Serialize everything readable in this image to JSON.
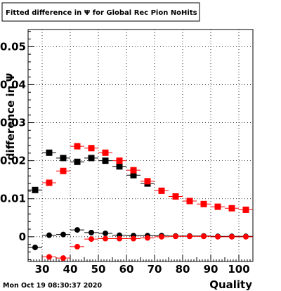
{
  "footer": {
    "timestamp": "Mon Oct 19 08:30:37 2020"
  },
  "chart_data": {
    "type": "scatter",
    "title": "Fitted difference in  Ψ  for Global Rec Pion NoHits",
    "xlabel": "Quality",
    "ylabel": "difference in Ψ",
    "xlim": [
      25,
      105
    ],
    "ylim": [
      -0.0065,
      0.0545
    ],
    "x_ticks": [
      30,
      40,
      50,
      60,
      70,
      80,
      90,
      100
    ],
    "x_tick_labels": [
      "30",
      "40",
      "50",
      "60",
      "70",
      "80",
      "90",
      "100"
    ],
    "y_ticks": [
      0,
      0.01,
      0.02,
      0.03,
      0.04,
      0.05
    ],
    "y_tick_labels": [
      "0",
      "0.01",
      "0.02",
      "0.03",
      "0.04",
      "0.05"
    ],
    "grid": true,
    "legend": false,
    "series": [
      {
        "marker": "square",
        "color": "#000000",
        "x": [
          27.5,
          32.5,
          37.5,
          42.5,
          47.5,
          52.5,
          57.5,
          62.5,
          67.5
        ],
        "y": [
          0.0123,
          0.0221,
          0.0207,
          0.0197,
          0.0207,
          0.02,
          0.0185,
          0.0162,
          0.014
        ],
        "y_err": [
          0.0003,
          0.0006,
          0.0004,
          0.0003,
          0.0003,
          0.0003,
          0.0003,
          0.0003,
          0.0003
        ]
      },
      {
        "marker": "square",
        "color": "#ff0000",
        "x": [
          32.5,
          37.5,
          42.5,
          47.5,
          52.5,
          57.5,
          62.5,
          67.5,
          72.5,
          77.5,
          82.5,
          87.5,
          92.5,
          97.5,
          102.5
        ],
        "y": [
          0.0142,
          0.0173,
          0.0238,
          0.0233,
          0.0221,
          0.02,
          0.0175,
          0.0146,
          0.0121,
          0.0106,
          0.0094,
          0.0086,
          0.0079,
          0.0075,
          0.0071
        ],
        "y_err": [
          0.0003,
          0.0003,
          0.0003,
          0.0003,
          0.0003,
          0.0003,
          0.0003,
          0.0003,
          0.0003,
          0.0003,
          0.0003,
          0.0003,
          0.0003,
          0.0003,
          0.0003
        ]
      },
      {
        "marker": "circle",
        "color": "#000000",
        "x": [
          27.5,
          32.5,
          37.5,
          42.5,
          47.5,
          52.5,
          57.5,
          62.5,
          67.5,
          72.5,
          77.5,
          82.5,
          87.5,
          92.5,
          97.5,
          102.5
        ],
        "y": [
          -0.0028,
          0.0004,
          0.0006,
          0.0018,
          0.0011,
          0.0009,
          0.0004,
          0.0003,
          0.0003,
          0.0003,
          0.0002,
          0.0002,
          0.0002,
          0.0001,
          0.0001,
          0.0001
        ],
        "y_err": [
          0.0004,
          0.0003,
          0.0003,
          0.0003,
          0.0002,
          0.0002,
          0.0002,
          0.0002,
          0.0002,
          0.0002,
          0.0002,
          0.0002,
          0.0002,
          0.0002,
          0.0002,
          0.0002
        ]
      },
      {
        "marker": "circle",
        "color": "#ff0000",
        "x": [
          32.5,
          37.5,
          42.5,
          47.5,
          52.5,
          57.5,
          62.5,
          67.5,
          72.5,
          77.5,
          82.5,
          87.5,
          92.5,
          97.5,
          102.5
        ],
        "y": [
          -0.0053,
          -0.0056,
          -0.0026,
          -0.0006,
          -0.0005,
          -0.0005,
          -0.0005,
          -0.0003,
          0.0,
          0.0001,
          0.0001,
          0.0001,
          0.0,
          0.0,
          0.0
        ],
        "y_err": [
          0.0003,
          0.0003,
          0.0003,
          0.0002,
          0.0002,
          0.0002,
          0.0002,
          0.0002,
          0.0002,
          0.0002,
          0.0002,
          0.0002,
          0.0002,
          0.0002,
          0.0002
        ]
      }
    ]
  }
}
